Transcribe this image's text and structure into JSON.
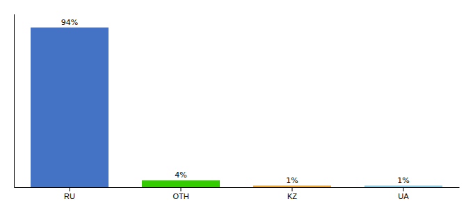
{
  "chart_data": {
    "type": "bar",
    "categories": [
      "RU",
      "OTH",
      "KZ",
      "UA"
    ],
    "values": [
      94,
      4,
      1,
      1
    ],
    "value_labels": [
      "94%",
      "4%",
      "1%",
      "1%"
    ],
    "colors": [
      "#4472c4",
      "#33cc00",
      "#f5a623",
      "#87ceeb"
    ],
    "ylim": [
      0,
      102
    ],
    "data_labels": true,
    "tick_labels": "x"
  }
}
